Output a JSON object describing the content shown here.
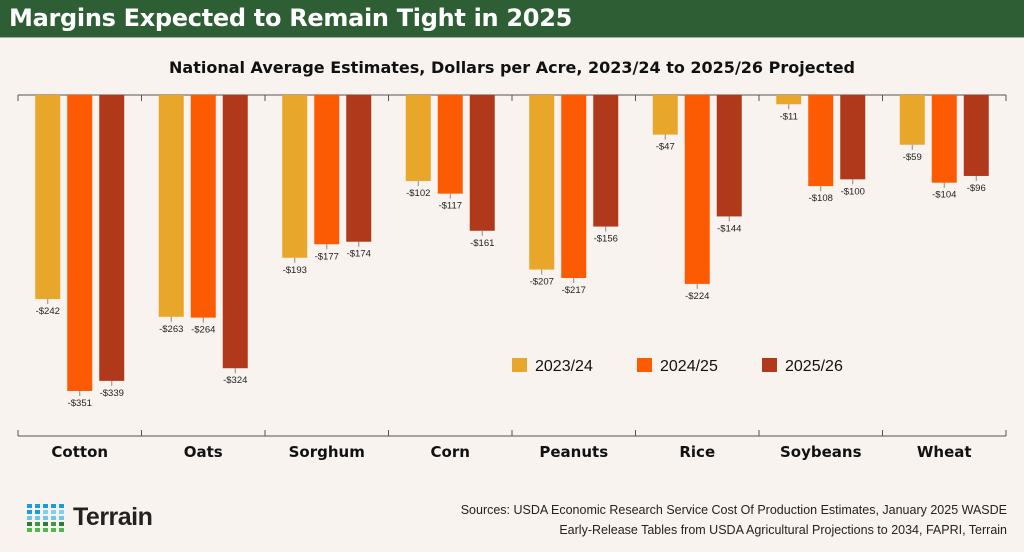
{
  "header": {
    "title": "Margins Expected to Remain Tight in 2025"
  },
  "chart_data": {
    "type": "bar",
    "title": "National Average Estimates, Dollars per Acre, 2023/24 to 2025/26 Projected",
    "xlabel": "",
    "ylabel": "",
    "categories": [
      "Cotton",
      "Oats",
      "Sorghum",
      "Corn",
      "Peanuts",
      "Rice",
      "Soybeans",
      "Wheat"
    ],
    "series": [
      {
        "name": "2023/24",
        "color": "#e8a62a",
        "values": [
          -242,
          -263,
          -193,
          -102,
          -207,
          -47,
          -11,
          -59
        ]
      },
      {
        "name": "2024/25",
        "color": "#fc5a03",
        "values": [
          -351,
          -264,
          -177,
          -117,
          -217,
          -224,
          -108,
          -104
        ]
      },
      {
        "name": "2025/26",
        "color": "#b0381b",
        "values": [
          -339,
          -324,
          -174,
          -161,
          -156,
          -144,
          -100,
          -96
        ]
      }
    ],
    "ylim": [
      -400,
      0
    ],
    "data_labels": true,
    "grid": false,
    "legend_position": "lower-right"
  },
  "footer": {
    "sources_line1": "Sources: USDA Economic Research Service Cost Of Production Estimates, January 2025 WASDE",
    "sources_line2": "Early-Release Tables from USDA Agricultural Projections to 2034, FAPRI, Terrain",
    "logo_text": "Terrain"
  }
}
